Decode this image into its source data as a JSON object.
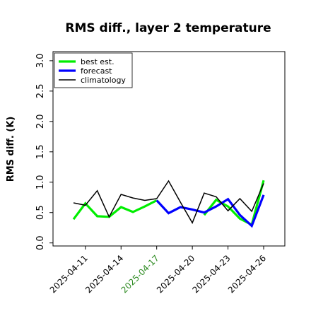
{
  "chart_data": {
    "type": "line",
    "title": "RMS diff., layer 2 temperature",
    "xlabel": "",
    "ylabel": "RMS diff. (K)",
    "ylim": [
      -0.05,
      3.15
    ],
    "yticks": [
      "0.0",
      "0.5",
      "1.0",
      "1.5",
      "2.0",
      "2.5",
      "3.0"
    ],
    "x": [
      "2025-04-10",
      "2025-04-11",
      "2025-04-12",
      "2025-04-13",
      "2025-04-14",
      "2025-04-15",
      "2025-04-16",
      "2025-04-17",
      "2025-04-18",
      "2025-04-19",
      "2025-04-20",
      "2025-04-21",
      "2025-04-22",
      "2025-04-23",
      "2025-04-24",
      "2025-04-25",
      "2025-04-26"
    ],
    "xtick_labels": [
      {
        "date": "2025-04-11",
        "label": "2025-04-11",
        "color": "#000000"
      },
      {
        "date": "2025-04-14",
        "label": "2025-04-14",
        "color": "#000000"
      },
      {
        "date": "2025-04-17",
        "label": "2025-04-17",
        "color": "#2e8b22"
      },
      {
        "date": "2025-04-20",
        "label": "2025-04-20",
        "color": "#000000"
      },
      {
        "date": "2025-04-23",
        "label": "2025-04-23",
        "color": "#000000"
      },
      {
        "date": "2025-04-26",
        "label": "2025-04-26",
        "color": "#000000"
      }
    ],
    "legend_position": "top-left",
    "grid": false,
    "series": [
      {
        "name": "best est.",
        "color": "#00ee00",
        "values": [
          0.39,
          0.65,
          0.44,
          0.43,
          0.59,
          0.51,
          0.6,
          0.7,
          null,
          null,
          null,
          0.46,
          0.71,
          0.6,
          0.4,
          0.3,
          1.03
        ]
      },
      {
        "name": "forecast",
        "color": "#0000ff",
        "values": [
          null,
          null,
          null,
          null,
          null,
          null,
          null,
          0.7,
          0.49,
          0.59,
          0.55,
          0.5,
          0.6,
          0.72,
          0.46,
          0.28,
          0.79
        ]
      },
      {
        "name": "climatology",
        "color": "#000000",
        "values": [
          0.66,
          0.62,
          0.86,
          0.43,
          0.8,
          0.74,
          0.7,
          0.73,
          1.02,
          0.67,
          0.33,
          0.82,
          0.76,
          0.53,
          0.73,
          0.52,
          0.98
        ]
      }
    ]
  }
}
